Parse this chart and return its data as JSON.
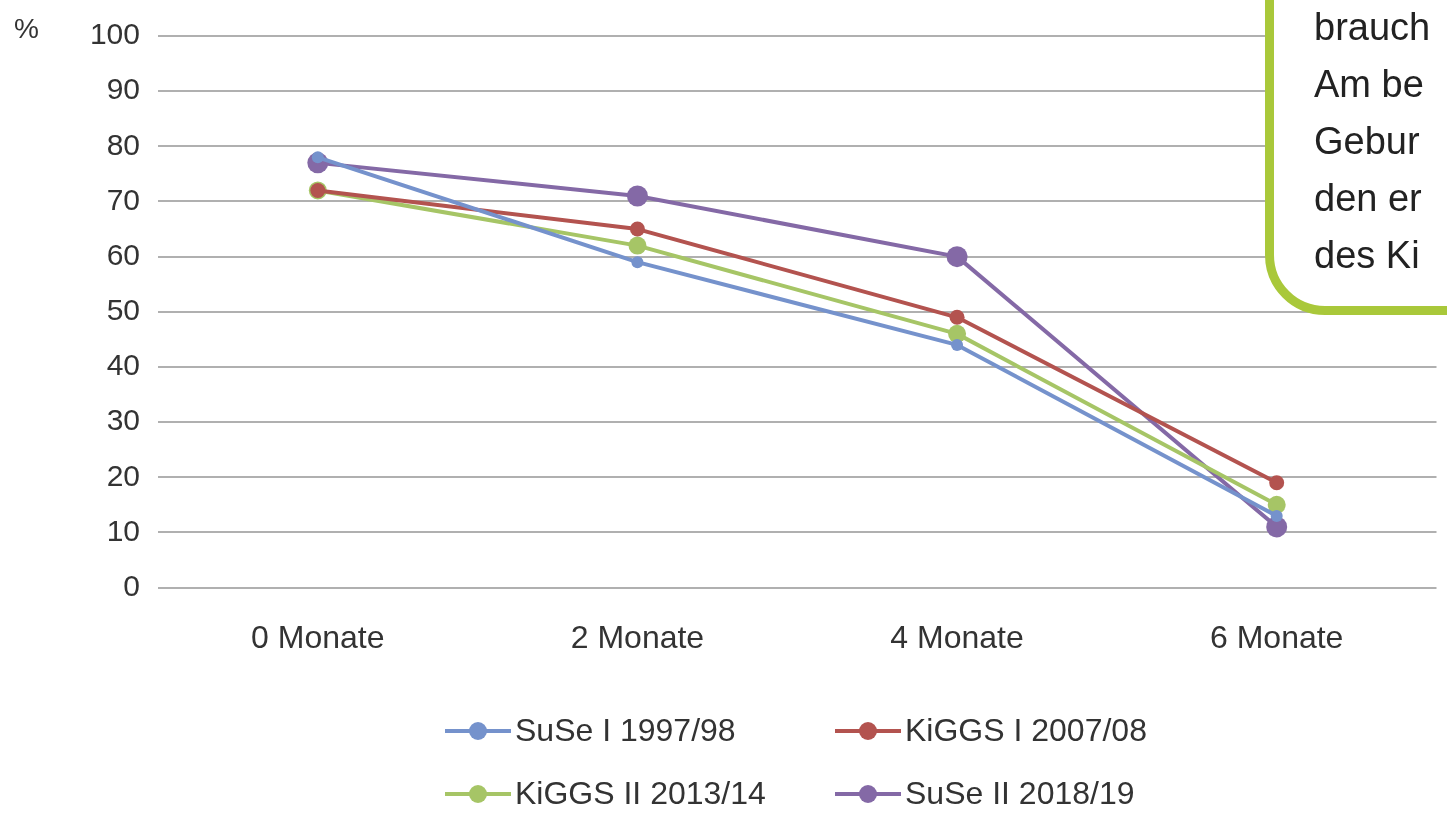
{
  "chart_data": {
    "type": "line",
    "ylabel": "%",
    "categories": [
      "0 Monate",
      "2 Monate",
      "4 Monate",
      "6 Monate"
    ],
    "series": [
      {
        "name": "SuSe I 1997/98",
        "color": "#7592cc",
        "values": [
          78,
          59,
          44,
          13
        ]
      },
      {
        "name": "KiGGS I 2007/08",
        "color": "#b3534f",
        "values": [
          72,
          65,
          49,
          19
        ]
      },
      {
        "name": "KiGGS II 2013/14",
        "color": "#a6c566",
        "values": [
          72,
          62,
          46,
          15
        ]
      },
      {
        "name": "SuSe II 2018/19",
        "color": "#8469a6",
        "values": [
          77,
          71,
          60,
          11
        ]
      }
    ],
    "ylim": [
      0,
      100
    ],
    "yticks": [
      0,
      10,
      20,
      30,
      40,
      50,
      60,
      70,
      80,
      90,
      100
    ],
    "grid": "y",
    "legend": "bottom",
    "marker": "circle",
    "line_style": "solid",
    "annotations": [
      "brauch",
      "Am be",
      "Gebur",
      "den er",
      "des Ki"
    ]
  }
}
